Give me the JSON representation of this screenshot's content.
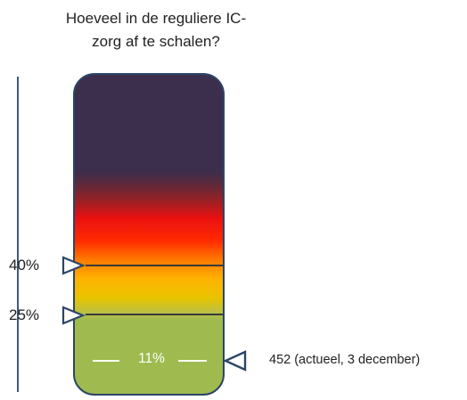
{
  "title": "Hoeveel in de reguliere IC-zorg af te schalen?",
  "title_lines": [
    "Hoeveel in de reguliere IC-",
    "zorg af te schalen?"
  ],
  "thresholds": [
    {
      "label": "40%",
      "value": 40
    },
    {
      "label": "25%",
      "value": 25
    }
  ],
  "current": {
    "label": "11%",
    "value": 11,
    "note": "452 (actueel, 3 december)"
  },
  "colors": {
    "frame": "#2c4566",
    "scale_line": "#3f5a7a",
    "top": "#3c2e4d",
    "red": "#ea1010",
    "orange": "#ff7a00",
    "yellow": "#e8c400",
    "green": "#9fbb4f"
  }
}
